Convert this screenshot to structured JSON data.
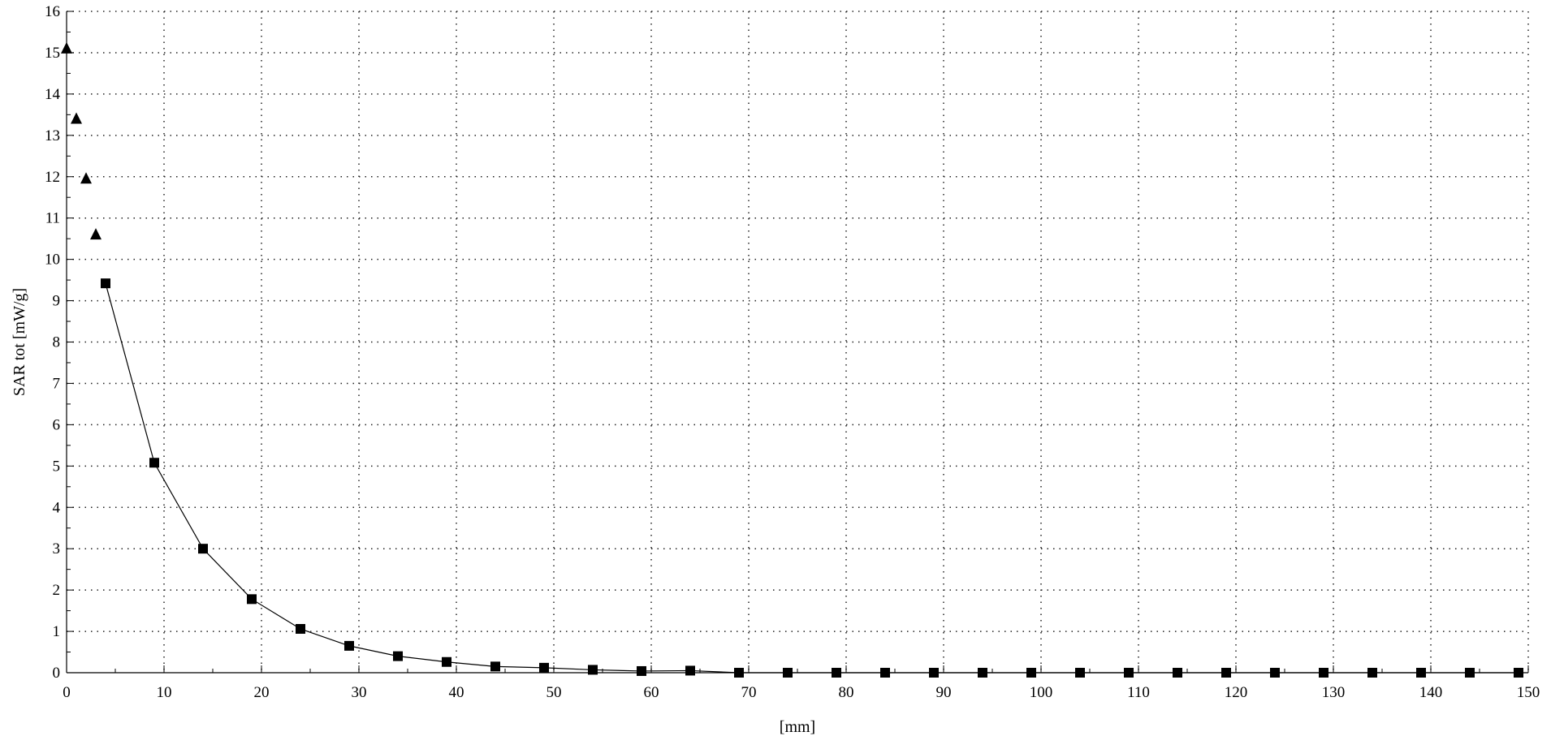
{
  "chart_data": {
    "type": "scatter",
    "title": "",
    "xlabel": "[mm]",
    "ylabel": "SAR tot [mW/g]",
    "xlim": [
      0,
      150
    ],
    "ylim": [
      0,
      16
    ],
    "x_ticks": [
      0,
      10,
      20,
      30,
      40,
      50,
      60,
      70,
      80,
      90,
      100,
      110,
      120,
      130,
      140,
      150
    ],
    "y_ticks": [
      0,
      1,
      2,
      3,
      4,
      5,
      6,
      7,
      8,
      9,
      10,
      11,
      12,
      13,
      14,
      15,
      16
    ],
    "grid": true,
    "legend": "none",
    "series": [
      {
        "marker": "triangle",
        "line": false,
        "color": "#000000",
        "points": [
          {
            "x": 0,
            "y": 15.1
          },
          {
            "x": 1,
            "y": 13.4
          },
          {
            "x": 2,
            "y": 11.95
          },
          {
            "x": 3,
            "y": 10.6
          }
        ]
      },
      {
        "marker": "square",
        "line": true,
        "color": "#000000",
        "points": [
          {
            "x": 4,
            "y": 9.42
          },
          {
            "x": 9,
            "y": 5.08
          },
          {
            "x": 14,
            "y": 3.0
          },
          {
            "x": 19,
            "y": 1.78
          },
          {
            "x": 24,
            "y": 1.06
          },
          {
            "x": 29,
            "y": 0.65
          },
          {
            "x": 34,
            "y": 0.4
          },
          {
            "x": 39,
            "y": 0.26
          },
          {
            "x": 44,
            "y": 0.15
          },
          {
            "x": 49,
            "y": 0.12
          },
          {
            "x": 54,
            "y": 0.07
          },
          {
            "x": 59,
            "y": 0.04
          },
          {
            "x": 64,
            "y": 0.05
          },
          {
            "x": 69,
            "y": 0.0
          },
          {
            "x": 74,
            "y": 0.0
          },
          {
            "x": 79,
            "y": 0.0
          },
          {
            "x": 84,
            "y": 0.0
          },
          {
            "x": 89,
            "y": 0.0
          },
          {
            "x": 94,
            "y": 0.0
          },
          {
            "x": 99,
            "y": 0.0
          },
          {
            "x": 104,
            "y": 0.0
          },
          {
            "x": 109,
            "y": 0.0
          },
          {
            "x": 114,
            "y": 0.0
          },
          {
            "x": 119,
            "y": 0.0
          },
          {
            "x": 124,
            "y": 0.0
          },
          {
            "x": 129,
            "y": 0.0
          },
          {
            "x": 134,
            "y": 0.0
          },
          {
            "x": 139,
            "y": 0.0
          },
          {
            "x": 144,
            "y": 0.0
          },
          {
            "x": 149,
            "y": 0.0
          }
        ]
      }
    ]
  }
}
